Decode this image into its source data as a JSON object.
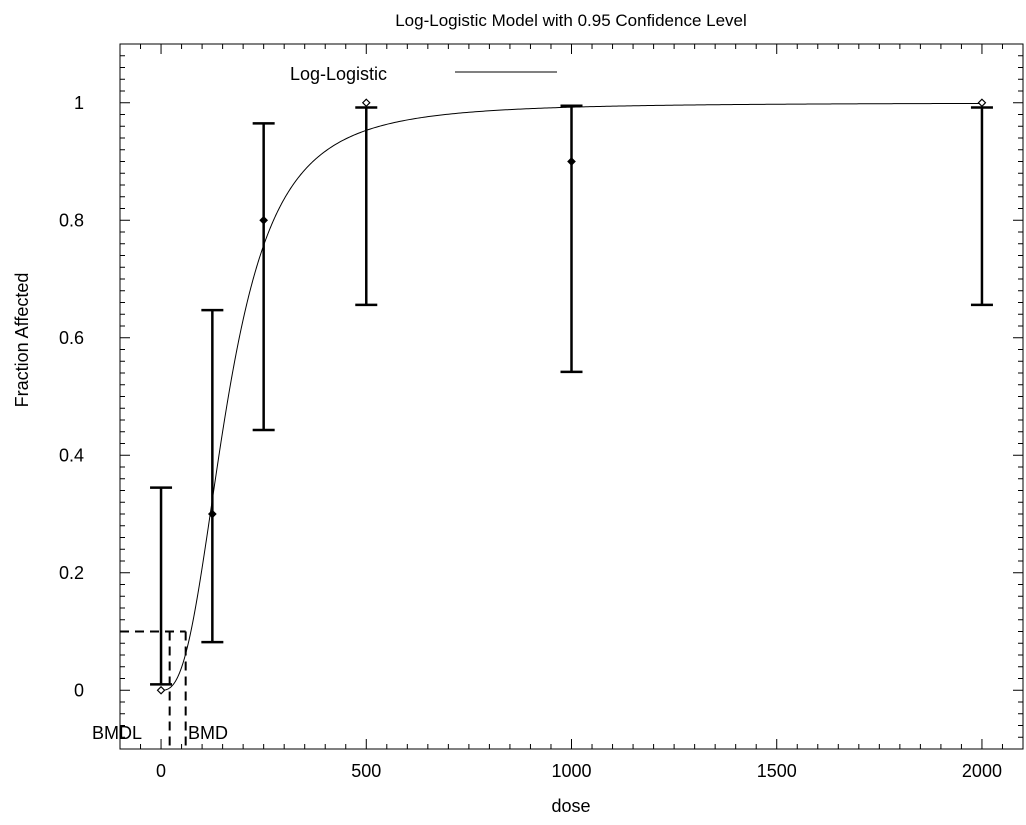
{
  "chart_data": {
    "type": "scatter",
    "title": "Log-Logistic Model with 0.95 Confidence Level",
    "xlabel": "dose",
    "ylabel": "Fraction Affected",
    "xlim": [
      -100,
      2100
    ],
    "ylim": [
      -0.1,
      1.1
    ],
    "x_ticks": [
      0,
      500,
      1000,
      1500,
      2000
    ],
    "x_tick_labels": [
      "0",
      "500",
      "1000",
      "1500",
      "2000"
    ],
    "y_ticks": [
      0,
      0.2,
      0.4,
      0.6,
      0.8,
      1
    ],
    "y_tick_labels": [
      "0",
      "0.2",
      "0.4",
      "0.6",
      "0.8",
      "1"
    ],
    "legend": {
      "label": "Log-Logistic",
      "placement": "top-center"
    },
    "grid": false,
    "observations": [
      {
        "x": 0,
        "y": 0.0,
        "lower": 0.01,
        "upper": 0.345
      },
      {
        "x": 125,
        "y": 0.3,
        "lower": 0.082,
        "upper": 0.647
      },
      {
        "x": 250,
        "y": 0.8,
        "lower": 0.443,
        "upper": 0.965
      },
      {
        "x": 500,
        "y": 1.0,
        "lower": 0.656,
        "upper": 0.992
      },
      {
        "x": 1000,
        "y": 0.9,
        "lower": 0.542,
        "upper": 0.995
      },
      {
        "x": 2000,
        "y": 1.0,
        "lower": 0.656,
        "upper": 0.992
      }
    ],
    "model": {
      "name": "Log-Logistic",
      "background": 0.0,
      "ed50": 164,
      "slope": 2.7
    },
    "bmr": 0.1,
    "bmd": 60,
    "bmdl": 21,
    "bmd_label": "BMD",
    "bmdl_label": "BMDL"
  }
}
